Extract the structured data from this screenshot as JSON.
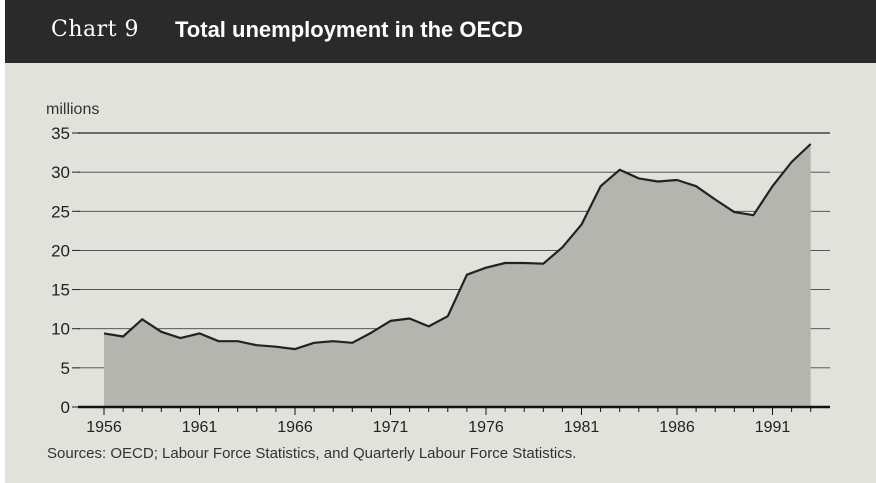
{
  "header": {
    "chart_label": "Chart 9",
    "title": "Total unemployment in the OECD"
  },
  "unit_label": "millions",
  "source": "Sources: OECD; Labour Force Statistics, and Quarterly Labour Force Statistics.",
  "colors": {
    "header_bg": "#2a2a2a",
    "plot_bg": "#e2e2dc",
    "area_fill": "#b5b5b0",
    "line": "#222222"
  },
  "chart_data": {
    "type": "area",
    "title": "Total unemployment in the OECD",
    "ylabel": "millions",
    "xlabel": "",
    "ylim": [
      0,
      35
    ],
    "xlim": [
      1956,
      1993
    ],
    "yticks": [
      0,
      5,
      10,
      15,
      20,
      25,
      30,
      35
    ],
    "xticks": [
      1956,
      1961,
      1966,
      1971,
      1976,
      1981,
      1986,
      1991
    ],
    "grid": true,
    "x": [
      1956,
      1957,
      1958,
      1959,
      1960,
      1961,
      1962,
      1963,
      1964,
      1965,
      1966,
      1967,
      1968,
      1969,
      1970,
      1971,
      1972,
      1973,
      1974,
      1975,
      1976,
      1977,
      1978,
      1979,
      1980,
      1981,
      1982,
      1983,
      1984,
      1985,
      1986,
      1987,
      1988,
      1989,
      1990,
      1991,
      1992,
      1993
    ],
    "values": [
      9.4,
      9.0,
      11.2,
      9.6,
      8.8,
      9.4,
      8.4,
      8.4,
      7.9,
      7.7,
      7.4,
      8.2,
      8.4,
      8.2,
      9.5,
      11.0,
      11.3,
      10.3,
      11.6,
      16.9,
      17.8,
      18.4,
      18.4,
      18.3,
      20.4,
      23.3,
      28.2,
      30.3,
      29.2,
      28.8,
      29.0,
      28.2,
      26.5,
      24.9,
      24.5,
      28.2,
      31.3,
      33.6
    ]
  }
}
